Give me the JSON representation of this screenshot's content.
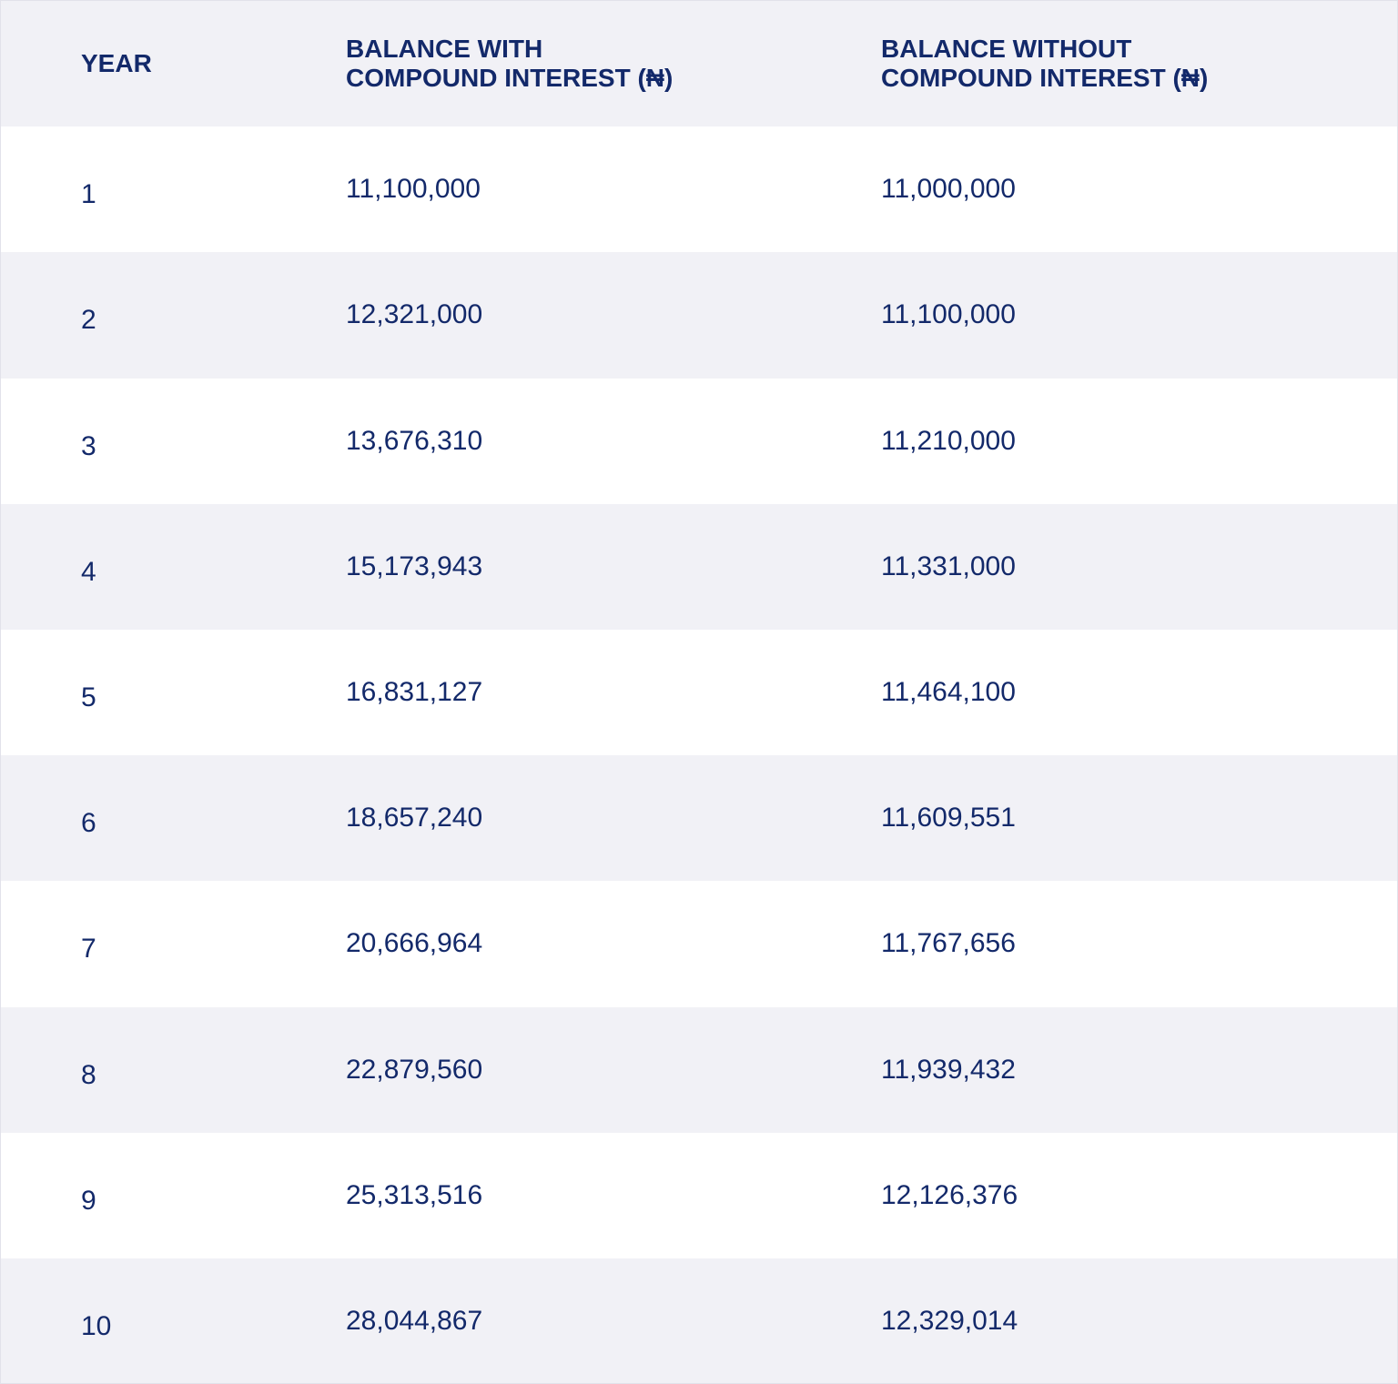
{
  "table": {
    "header": [
      [
        "YEAR"
      ],
      [
        "BALANCE WITH",
        "COMPOUND INTEREST (₦)"
      ],
      [
        "BALANCE WITHOUT",
        "COMPOUND INTEREST (₦)"
      ]
    ],
    "rows": [
      [
        "1",
        "11,100,000",
        "11,000,000"
      ],
      [
        "2",
        "12,321,000",
        "11,100,000"
      ],
      [
        "3",
        "13,676,310",
        "11,210,000"
      ],
      [
        "4",
        "15,173,943",
        "11,331,000"
      ],
      [
        "5",
        "16,831,127",
        "11,464,100"
      ],
      [
        "6",
        "18,657,240",
        "11,609,551"
      ],
      [
        "7",
        "20,666,964",
        "11,767,656"
      ],
      [
        "8",
        "22,879,560",
        "11,939,432"
      ],
      [
        "9",
        "25,313,516",
        "12,126,376"
      ],
      [
        "10",
        "28,044,867",
        "12,329,014"
      ]
    ]
  }
}
